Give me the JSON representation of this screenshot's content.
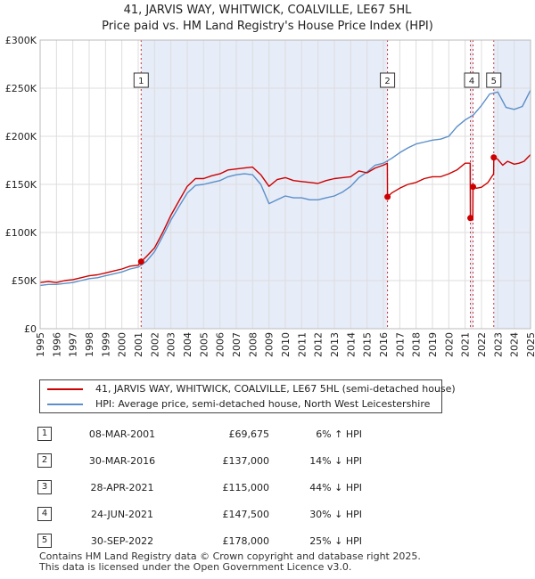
{
  "header": {
    "title": "41, JARVIS WAY, WHITWICK, COALVILLE, LE67 5HL",
    "subtitle": "Price paid vs. HM Land Registry's House Price Index (HPI)"
  },
  "legend": {
    "property_label": "41, JARVIS WAY, WHITWICK, COALVILLE, LE67 5HL (semi-detached house)",
    "hpi_label": "HPI: Average price, semi-detached house, North West Leicestershire"
  },
  "colors": {
    "property": "#cc0000",
    "hpi": "#5b8fc9",
    "shade": "#e6ecf8",
    "grid": "#dddddd",
    "marker_line": "#cc3333"
  },
  "chart_data": {
    "type": "line",
    "title": "41, JARVIS WAY, WHITWICK, COALVILLE, LE67 5HL",
    "subtitle": "Price paid vs. HM Land Registry's House Price Index (HPI)",
    "xlim": [
      1995,
      2025
    ],
    "ylim": [
      0,
      300000
    ],
    "y_ticks": [
      0,
      50000,
      100000,
      150000,
      200000,
      250000,
      300000
    ],
    "y_tick_labels": [
      "£0",
      "£50K",
      "£100K",
      "£150K",
      "£200K",
      "£250K",
      "£300K"
    ],
    "x_ticks": [
      1995,
      1996,
      1997,
      1998,
      1999,
      2000,
      2001,
      2002,
      2003,
      2004,
      2005,
      2006,
      2007,
      2008,
      2009,
      2010,
      2011,
      2012,
      2013,
      2014,
      2015,
      2016,
      2017,
      2018,
      2019,
      2020,
      2021,
      2022,
      2023,
      2024,
      2025
    ],
    "x_tick_labels": [
      "1995",
      "1996",
      "1997",
      "1998",
      "1999",
      "2000",
      "2001",
      "2002",
      "2003",
      "2004",
      "2005",
      "2006",
      "2007",
      "2008",
      "2009",
      "2010",
      "2011",
      "2012",
      "2013",
      "2014",
      "2015",
      "2016",
      "2017",
      "2018",
      "2019",
      "2020",
      "2021",
      "2022",
      "2023",
      "2024",
      "2025"
    ],
    "grid": true,
    "shaded_regions": [
      [
        2001.18,
        2016.25
      ],
      [
        2021.32,
        2021.48
      ],
      [
        2022.75,
        2025.0
      ]
    ],
    "series": [
      {
        "name": "41, JARVIS WAY, WHITWICK, COALVILLE, LE67 5HL (semi-detached house)",
        "x": [
          1995.0,
          1995.5,
          1996.0,
          1996.5,
          1997.0,
          1997.5,
          1998.0,
          1998.5,
          1999.0,
          1999.5,
          2000.0,
          2000.5,
          2001.0,
          2001.18,
          2001.5,
          2002.0,
          2002.5,
          2003.0,
          2003.5,
          2004.0,
          2004.5,
          2005.0,
          2005.5,
          2006.0,
          2006.5,
          2007.0,
          2007.5,
          2008.0,
          2008.5,
          2009.0,
          2009.5,
          2010.0,
          2010.5,
          2011.0,
          2011.5,
          2012.0,
          2012.5,
          2013.0,
          2013.5,
          2014.0,
          2014.5,
          2015.0,
          2015.5,
          2016.0,
          2016.24,
          2016.25,
          2016.5,
          2017.0,
          2017.5,
          2018.0,
          2018.5,
          2019.0,
          2019.5,
          2020.0,
          2020.5,
          2021.0,
          2021.31,
          2021.32,
          2021.47,
          2021.48,
          2021.7,
          2022.0,
          2022.4,
          2022.74,
          2022.75,
          2023.0,
          2023.3,
          2023.6,
          2024.0,
          2024.3,
          2024.6,
          2025.0
        ],
        "y": [
          48000,
          49000,
          48000,
          50000,
          51000,
          53000,
          55000,
          56000,
          58000,
          60000,
          62000,
          65000,
          66000,
          69675,
          75000,
          84000,
          100000,
          118000,
          133000,
          148000,
          156000,
          156000,
          159000,
          161000,
          165000,
          166000,
          167000,
          168000,
          160000,
          148000,
          155000,
          157000,
          154000,
          153000,
          152000,
          151000,
          154000,
          156000,
          157000,
          158000,
          164000,
          162000,
          167000,
          170000,
          172000,
          137000,
          141000,
          146000,
          150000,
          152000,
          156000,
          158000,
          158000,
          161000,
          165000,
          172000,
          172000,
          115000,
          113000,
          147500,
          146000,
          147000,
          152000,
          161000,
          178000,
          176000,
          170000,
          174000,
          171000,
          172000,
          174000,
          181000
        ]
      },
      {
        "name": "HPI: Average price, semi-detached house, North West Leicestershire",
        "x": [
          1995.0,
          1995.5,
          1996.0,
          1996.5,
          1997.0,
          1997.5,
          1998.0,
          1998.5,
          1999.0,
          1999.5,
          2000.0,
          2000.5,
          2001.0,
          2001.5,
          2002.0,
          2002.5,
          2003.0,
          2003.5,
          2004.0,
          2004.5,
          2005.0,
          2005.5,
          2006.0,
          2006.5,
          2007.0,
          2007.5,
          2008.0,
          2008.5,
          2009.0,
          2009.5,
          2010.0,
          2010.5,
          2011.0,
          2011.5,
          2012.0,
          2012.5,
          2013.0,
          2013.5,
          2014.0,
          2014.5,
          2015.0,
          2015.5,
          2016.0,
          2016.5,
          2017.0,
          2017.5,
          2018.0,
          2018.5,
          2019.0,
          2019.5,
          2020.0,
          2020.5,
          2021.0,
          2021.5,
          2022.0,
          2022.5,
          2023.0,
          2023.5,
          2024.0,
          2024.5,
          2025.0
        ],
        "y": [
          45000,
          46000,
          46000,
          47000,
          48000,
          50000,
          52000,
          53000,
          55000,
          57000,
          59000,
          62000,
          64000,
          70000,
          80000,
          96000,
          113000,
          127000,
          141000,
          149000,
          150000,
          152000,
          154000,
          158000,
          160000,
          161000,
          160000,
          150000,
          130000,
          134000,
          138000,
          136000,
          136000,
          134000,
          134000,
          136000,
          138000,
          142000,
          148000,
          157000,
          163000,
          170000,
          172000,
          177000,
          183000,
          188000,
          192000,
          194000,
          196000,
          197000,
          200000,
          210000,
          217000,
          222000,
          232000,
          244000,
          246000,
          230000,
          228000,
          231000,
          248000
        ]
      }
    ],
    "sales": [
      {
        "num": "1",
        "x": 2001.18,
        "y": 69675
      },
      {
        "num": "2",
        "x": 2016.25,
        "y": 137000
      },
      {
        "num": "3",
        "x": 2021.32,
        "y": 115000
      },
      {
        "num": "4",
        "x": 2021.48,
        "y": 147500
      },
      {
        "num": "5",
        "x": 2022.75,
        "y": 178000
      }
    ],
    "marker_labels": [
      {
        "num": "1",
        "x": 2001.18
      },
      {
        "num": "2",
        "x": 2016.25
      },
      {
        "num": "4",
        "x": 2021.4
      },
      {
        "num": "5",
        "x": 2022.75
      }
    ]
  },
  "transactions": [
    {
      "num": "1",
      "date": "08-MAR-2001",
      "price": "£69,675",
      "hpi": "6% ↑ HPI"
    },
    {
      "num": "2",
      "date": "30-MAR-2016",
      "price": "£137,000",
      "hpi": "14% ↓ HPI"
    },
    {
      "num": "3",
      "date": "28-APR-2021",
      "price": "£115,000",
      "hpi": "44% ↓ HPI"
    },
    {
      "num": "4",
      "date": "24-JUN-2021",
      "price": "£147,500",
      "hpi": "30% ↓ HPI"
    },
    {
      "num": "5",
      "date": "30-SEP-2022",
      "price": "£178,000",
      "hpi": "25% ↓ HPI"
    }
  ],
  "footer": {
    "line1": "Contains HM Land Registry data © Crown copyright and database right 2025.",
    "line2": "This data is licensed under the Open Government Licence v3.0."
  }
}
